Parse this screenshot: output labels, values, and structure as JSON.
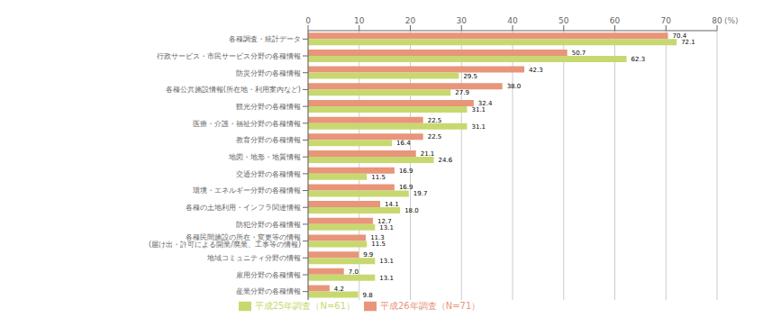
{
  "chart_data": {
    "type": "bar",
    "orientation": "horizontal",
    "xlabel": "(%)",
    "categories": [
      "各種調査・統計データ",
      "行政サービス・市民サービス分野の各種情報",
      "防災分野の各種情報",
      "各種公共施設情報(所在地・利用案内など)",
      "観光分野の各種情報",
      "医療・介護・福祉分野の各種情報",
      "教育分野の各種情報",
      "地図・地形・地質情報",
      "交通分野の各種情報",
      "環境・エネルギー分野の各種情報",
      "各種の土地利用・インフラ関連情報",
      "防犯分野の各種情報",
      "各種民間施設の所在・変更等の情報 (届け出・許可による開業/廃業、工事等の情報)",
      "地域コミュニティ分野の情報",
      "雇用分野の各種情報",
      "産業分野の各種情報"
    ],
    "series": [
      {
        "name": "平成26年調査（N=71）",
        "color": "#e8957a",
        "values": [
          70.4,
          50.7,
          42.3,
          38.0,
          32.4,
          22.5,
          22.5,
          21.1,
          16.9,
          16.9,
          14.1,
          12.7,
          11.3,
          9.9,
          7.0,
          4.2
        ],
        "value_labels": [
          "70.4",
          "50.7",
          "42.3",
          "38.0",
          "32.4",
          "22.5",
          "22.5",
          "21.1",
          "16.9",
          "16.9",
          "14.1",
          "12.7",
          "11.3",
          "9.9",
          "7.0",
          "4.2"
        ]
      },
      {
        "name": "平成25年調査（N=61）",
        "color": "#c8d870",
        "values": [
          72.1,
          62.3,
          29.5,
          27.9,
          31.1,
          31.1,
          16.4,
          24.6,
          11.5,
          19.7,
          18.0,
          13.1,
          11.5,
          13.1,
          13.1,
          9.8
        ],
        "value_labels": [
          "72.1",
          "62.3",
          "29.5",
          "27.9",
          "31.1",
          "31.1",
          "16.4",
          "24.6",
          "11.5",
          "19.7",
          "18.0",
          "13.1",
          "11.5",
          "13.1",
          "13.1",
          "9.8"
        ]
      }
    ],
    "xlim": [
      0,
      80
    ],
    "xticks": [
      0,
      10,
      20,
      30,
      40,
      50,
      60,
      70,
      80
    ],
    "grid": true,
    "data_labels": true,
    "legend": "bottom"
  }
}
